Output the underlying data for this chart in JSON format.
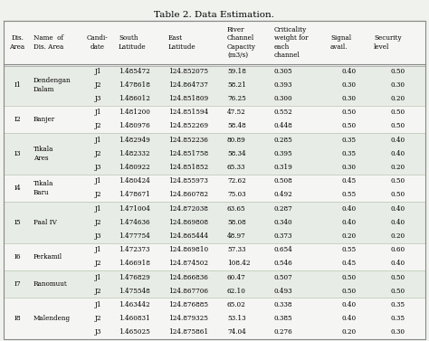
{
  "title": "Table 2. Data Estimation.",
  "bg_color": "#f0f2ee",
  "groups": [
    {
      "id": "I1",
      "name": "Dendengan\nDalam",
      "start": 0,
      "end": 3
    },
    {
      "id": "I2",
      "name": "Banjer",
      "start": 3,
      "end": 5
    },
    {
      "id": "I3",
      "name": "Tikala\nAres",
      "start": 5,
      "end": 8
    },
    {
      "id": "I4",
      "name": "Tikala\nBaru",
      "start": 8,
      "end": 10
    },
    {
      "id": "I5",
      "name": "Paal IV",
      "start": 10,
      "end": 13
    },
    {
      "id": "I6",
      "name": "Perkamil",
      "start": 13,
      "end": 15
    },
    {
      "id": "I7",
      "name": "Ranomuut",
      "start": 15,
      "end": 17
    },
    {
      "id": "I8",
      "name": "Malendeng",
      "start": 17,
      "end": 20
    }
  ],
  "rows": [
    [
      "J1",
      "1.485472",
      "124.852075",
      "59.18",
      "0.305",
      "0.40",
      "0.50"
    ],
    [
      "J2",
      "1.478618",
      "124.864737",
      "58.21",
      "0.393",
      "0.30",
      "0.30"
    ],
    [
      "J3",
      "1.486012",
      "124.851809",
      "76.25",
      "0.300",
      "0.30",
      "0.20"
    ],
    [
      "J1",
      "1.481200",
      "124.851594",
      "47.52",
      "0.552",
      "0.50",
      "0.50"
    ],
    [
      "J2",
      "1.480976",
      "124.852269",
      "58.48",
      "0.448",
      "0.50",
      "0.50"
    ],
    [
      "J1",
      "1.482949",
      "124.852236",
      "80.89",
      "0.285",
      "0.35",
      "0.40"
    ],
    [
      "J2",
      "1.482332",
      "124.851758",
      "58.34",
      "0.395",
      "0.35",
      "0.40"
    ],
    [
      "J3",
      "1.480922",
      "124.851852",
      "65.33",
      "0.319",
      "0.30",
      "0.20"
    ],
    [
      "J1",
      "1.480424",
      "124.855973",
      "72.62",
      "0.508",
      "0.45",
      "0.50"
    ],
    [
      "J2",
      "1.478671",
      "124.860782",
      "75.03",
      "0.492",
      "0.55",
      "0.50"
    ],
    [
      "J1",
      "1.471004",
      "124.872038",
      "63.65",
      "0.287",
      "0.40",
      "0.40"
    ],
    [
      "J2",
      "1.474636",
      "124.869808",
      "58.08",
      "0.340",
      "0.40",
      "0.40"
    ],
    [
      "J3",
      "1.477754",
      "124.865444",
      "48.97",
      "0.373",
      "0.20",
      "0.20"
    ],
    [
      "J1",
      "1.472373",
      "124.869810",
      "57.33",
      "0.654",
      "0.55",
      "0.60"
    ],
    [
      "J2",
      "1.466918",
      "124.874502",
      "108.42",
      "0.546",
      "0.45",
      "0.40"
    ],
    [
      "J1",
      "1.476829",
      "124.866836",
      "60.47",
      "0.507",
      "0.50",
      "0.50"
    ],
    [
      "J2",
      "1.475548",
      "124.867706",
      "62.10",
      "0.493",
      "0.50",
      "0.50"
    ],
    [
      "J1",
      "1.463442",
      "124.876885",
      "65.02",
      "0.338",
      "0.40",
      "0.35"
    ],
    [
      "J2",
      "1.460831",
      "124.879325",
      "53.13",
      "0.385",
      "0.40",
      "0.35"
    ],
    [
      "J3",
      "1.465025",
      "124.875861",
      "74.04",
      "0.276",
      "0.20",
      "0.30"
    ]
  ],
  "group_colors": [
    "#e8ece6",
    "#f5f6f3"
  ],
  "header_color": "#f5f6f3",
  "line_color": "#b8c4b0",
  "outer_line_color": "#888888"
}
